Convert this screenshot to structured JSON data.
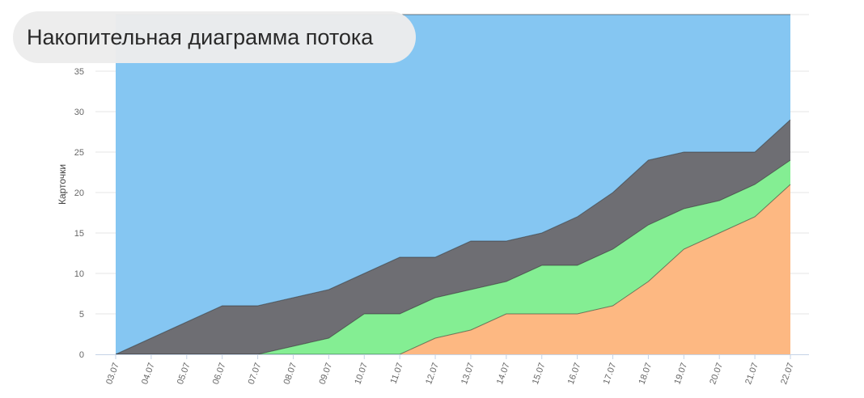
{
  "chart_title": "Накопительная диаграмма потока",
  "chart_data": {
    "type": "area",
    "stacked": true,
    "title": "Накопительная диаграмма потока",
    "xlabel": "",
    "ylabel": "Карточки",
    "ylim": [
      0,
      42
    ],
    "yticks": [
      0,
      5,
      10,
      15,
      20,
      25,
      30,
      35
    ],
    "grid": true,
    "categories": [
      "03.07",
      "04.07",
      "05.07",
      "06.07",
      "07.07",
      "08.07",
      "09.07",
      "10.07",
      "11.07",
      "12.07",
      "13.07",
      "14.07",
      "15.07",
      "16.07",
      "17.07",
      "18.07",
      "19.07",
      "20.07",
      "21.07",
      "22.07"
    ],
    "series": [
      {
        "color": "#fdb882",
        "values": [
          0,
          0,
          0,
          0,
          0,
          0,
          0,
          0,
          0,
          2,
          3,
          5,
          5,
          5,
          6,
          9,
          13,
          15,
          17,
          21
        ]
      },
      {
        "color": "#84ee93",
        "values": [
          0,
          0,
          0,
          0,
          0,
          1,
          2,
          5,
          5,
          5,
          5,
          4,
          6,
          6,
          7,
          7,
          5,
          4,
          4,
          3
        ]
      },
      {
        "color": "#6e6e73",
        "values": [
          0,
          2,
          4,
          6,
          6,
          6,
          6,
          5,
          7,
          5,
          6,
          5,
          4,
          6,
          7,
          8,
          7,
          6,
          4,
          5
        ]
      },
      {
        "color": "#85c6f2",
        "values": [
          42,
          40,
          38,
          36,
          36,
          35,
          34,
          32,
          30,
          30,
          28,
          28,
          27,
          25,
          22,
          18,
          17,
          17,
          17,
          13
        ]
      }
    ]
  }
}
